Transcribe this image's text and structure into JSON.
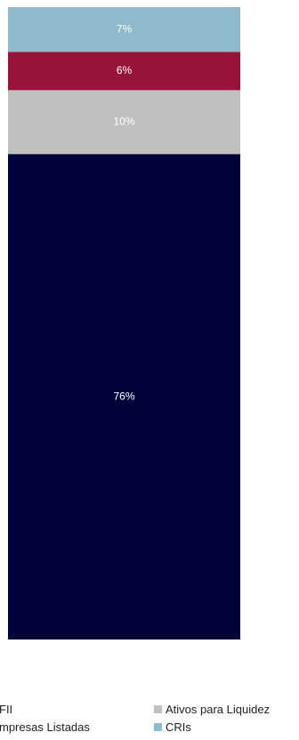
{
  "chart_data": {
    "type": "bar",
    "stacked": true,
    "orientation": "vertical",
    "categories": [
      ""
    ],
    "series": [
      {
        "name": "FII",
        "values": [
          76
        ],
        "label": "76%",
        "color": "#02023a"
      },
      {
        "name": "Ativos para Liquidez",
        "values": [
          10
        ],
        "label": "10%",
        "color": "#c0c0c0"
      },
      {
        "name": "mpresas Listadas",
        "values": [
          6
        ],
        "label": "6%",
        "color": "#98133a"
      },
      {
        "name": "CRIs",
        "values": [
          7
        ],
        "label": "7%",
        "color": "#8fbacc"
      }
    ],
    "ylim": [
      0,
      99
    ],
    "grid": false,
    "legend_position": "bottom"
  },
  "legend": {
    "items": [
      {
        "text": "FII",
        "color": "#02023a",
        "icon": "legend-square"
      },
      {
        "text": "Ativos para Liquidez",
        "color": "#c0c0c0",
        "icon": "legend-square"
      },
      {
        "text": "mpresas Listadas",
        "color": "#98133a",
        "icon": "legend-square"
      },
      {
        "text": "CRIs",
        "color": "#8fbacc",
        "icon": "legend-square"
      }
    ]
  }
}
